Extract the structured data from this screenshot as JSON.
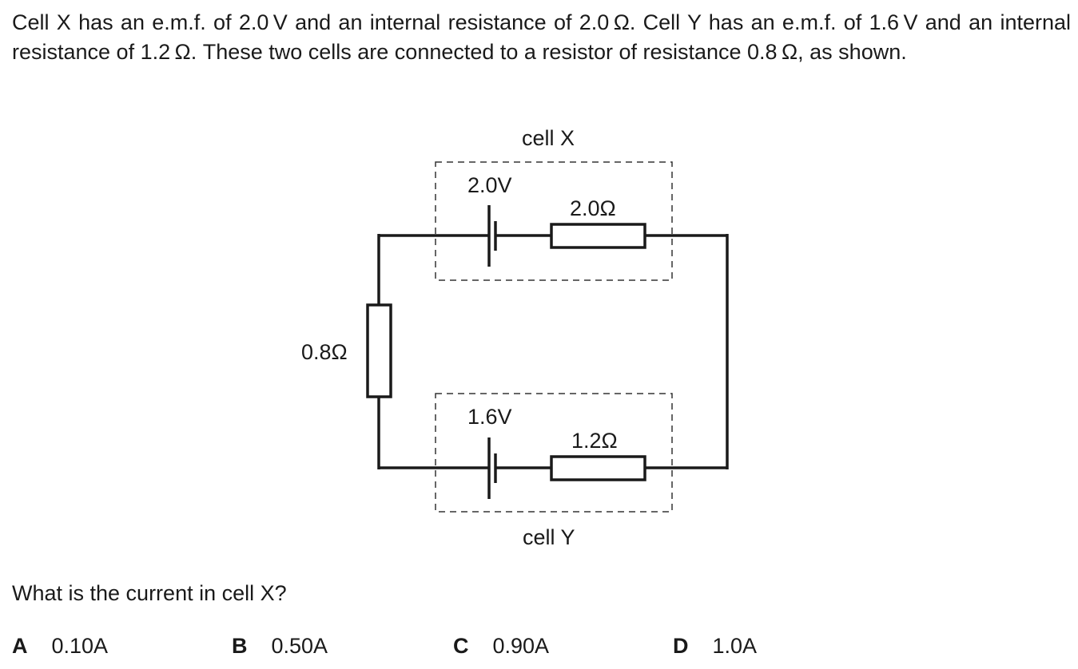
{
  "intro_text": "Cell X has an e.m.f. of 2.0 V and an internal resistance of 2.0 Ω. Cell Y has an e.m.f. of 1.6 V and an internal resistance of 1.2 Ω. These two cells are connected to a resistor of resistance 0.8 Ω, as shown.",
  "diagram": {
    "cell_x_label": "cell X",
    "cell_x_emf": "2.0V",
    "cell_x_internal_resistance": "2.0Ω",
    "cell_y_label": "cell Y",
    "cell_y_emf": "1.6V",
    "cell_y_internal_resistance": "1.2Ω",
    "external_resistor": "0.8Ω"
  },
  "question": "What is the current in cell X?",
  "options": [
    {
      "letter": "A",
      "value": "0.10A"
    },
    {
      "letter": "B",
      "value": "0.50A"
    },
    {
      "letter": "C",
      "value": "0.90A"
    },
    {
      "letter": "D",
      "value": "1.0A"
    }
  ]
}
